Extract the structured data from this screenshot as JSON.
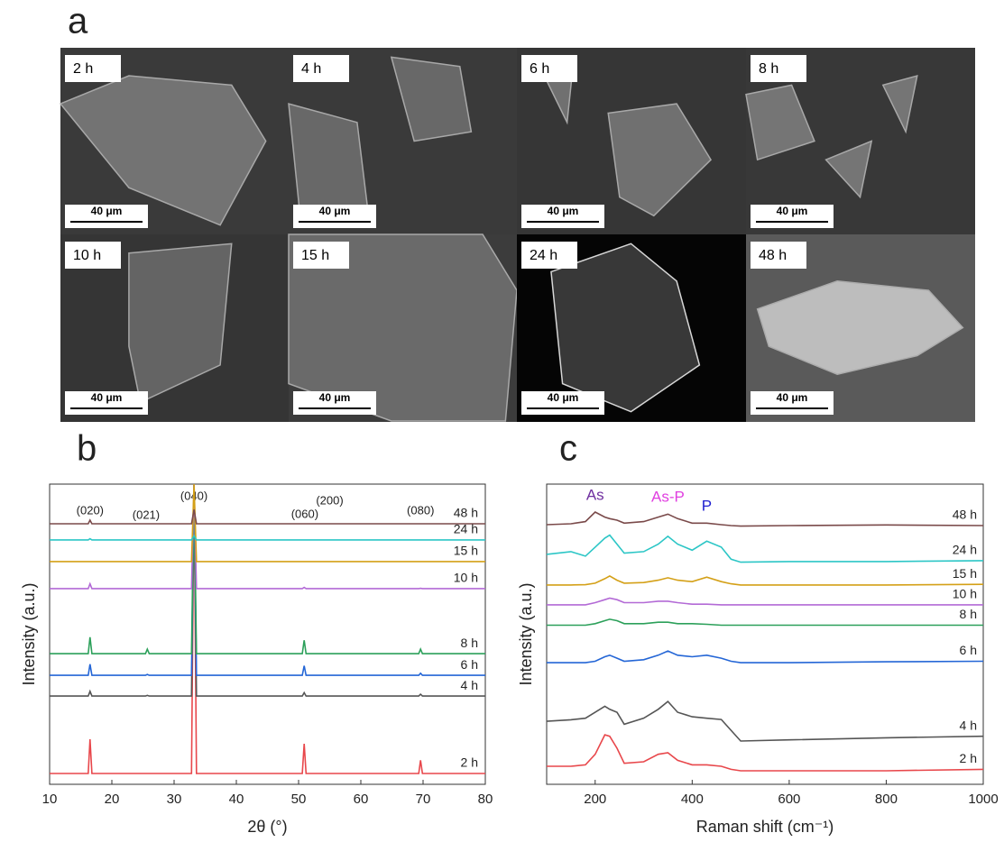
{
  "figure": {
    "panel_a": {
      "panel_label": "a",
      "images": [
        {
          "label": "2 h",
          "scale_bar": "40 μm"
        },
        {
          "label": "4 h",
          "scale_bar": "40 μm"
        },
        {
          "label": "6 h",
          "scale_bar": "40 μm"
        },
        {
          "label": "8 h",
          "scale_bar": "40 μm"
        },
        {
          "label": "10 h",
          "scale_bar": "40 μm"
        },
        {
          "label": "15 h",
          "scale_bar": "40 μm"
        },
        {
          "label": "24 h",
          "scale_bar": "40 μm"
        },
        {
          "label": "48 h",
          "scale_bar": "40 μm"
        }
      ]
    }
  },
  "chart_data": [
    {
      "type": "line",
      "panel_label": "b",
      "x_label": "2θ (°)",
      "y_label": "Intensity (a.u.)",
      "annotations": [
        "(020)",
        "(021)",
        "(040)",
        "(060)",
        "(200)",
        "(080)"
      ],
      "x": [
        10,
        16.2,
        16.5,
        16.8,
        25.4,
        25.7,
        26,
        32.8,
        33.2,
        33.6,
        50.6,
        50.9,
        51.2,
        69.3,
        69.6,
        69.9,
        80
      ],
      "xlim": [
        10,
        80
      ],
      "xticks": [
        10,
        20,
        30,
        40,
        50,
        60,
        70,
        80
      ],
      "ylim": [
        0,
        100
      ],
      "series": [
        {
          "name": "2 h",
          "color": "#e8474b",
          "values": [
            3.6,
            3.6,
            15,
            3.6,
            3.6,
            3.6,
            3.6,
            3.6,
            100,
            3.6,
            3.6,
            13.5,
            3.6,
            3.6,
            8,
            3.6,
            3.6
          ]
        },
        {
          "name": "4 h",
          "color": "#555555",
          "values": [
            29.4,
            29.4,
            31,
            29.4,
            29.4,
            29.6,
            29.4,
            29.4,
            100,
            29.4,
            29.4,
            30.5,
            29.4,
            29.4,
            30,
            29.4,
            29.4
          ]
        },
        {
          "name": "6 h",
          "color": "#2466d6",
          "values": [
            36.3,
            36.3,
            40,
            36.3,
            36.3,
            36.6,
            36.3,
            36.3,
            100,
            36.3,
            36.3,
            39.5,
            36.3,
            36.3,
            37,
            36.3,
            36.3
          ]
        },
        {
          "name": "8 h",
          "color": "#2ca05a",
          "values": [
            43.5,
            43.5,
            49,
            43.5,
            43.5,
            45,
            43.5,
            43.5,
            100,
            43.5,
            43.5,
            48,
            43.5,
            43.5,
            45,
            43.5,
            43.5
          ]
        },
        {
          "name": "10 h",
          "color": "#b36ad6",
          "values": [
            65.2,
            65.2,
            66.8,
            65.2,
            65.2,
            65.2,
            65.2,
            65.2,
            100,
            65.2,
            65.2,
            65.6,
            65.2,
            65.2,
            65.3,
            65.2,
            65.2
          ]
        },
        {
          "name": "15 h",
          "color": "#d4a017",
          "values": [
            74.2,
            74.2,
            74.2,
            74.2,
            74.2,
            74.2,
            74.2,
            74.2,
            100,
            74.2,
            74.2,
            74.2,
            74.2,
            74.2,
            74.2,
            74.2,
            74.2
          ]
        },
        {
          "name": "24 h",
          "color": "#2cc6c6",
          "values": [
            81.4,
            81.4,
            81.8,
            81.4,
            81.4,
            81.4,
            81.4,
            81.4,
            82.8,
            81.4,
            81.4,
            81.4,
            81.4,
            81.4,
            81.4,
            81.4,
            81.4
          ]
        },
        {
          "name": "48 h",
          "color": "#7a4a4a",
          "values": [
            86.8,
            86.8,
            88,
            86.8,
            86.8,
            86.8,
            86.8,
            86.8,
            91.5,
            86.8,
            86.8,
            86.8,
            86.8,
            86.8,
            86.8,
            86.8,
            86.8
          ]
        }
      ]
    },
    {
      "type": "line",
      "panel_label": "c",
      "x_label": "Raman shift (cm⁻¹)",
      "y_label": "Intensity (a.u.)",
      "annotations": [
        {
          "text": "As",
          "color": "#7030a0"
        },
        {
          "text": "As-P",
          "color": "#e040e0"
        },
        {
          "text": "P",
          "color": "#2020d0"
        }
      ],
      "x": [
        100,
        150,
        180,
        200,
        220,
        230,
        245,
        260,
        300,
        330,
        350,
        370,
        400,
        430,
        460,
        480,
        500,
        600,
        800,
        1000
      ],
      "xlim": [
        100,
        1000
      ],
      "xticks": [
        200,
        400,
        600,
        800,
        1000
      ],
      "ylim": [
        0,
        100
      ],
      "series": [
        {
          "name": "2 h",
          "color": "#e8474b",
          "values": [
            6,
            6,
            6.5,
            10,
            16.5,
            16,
            12,
            7,
            7.5,
            10,
            10.5,
            8,
            6.5,
            6.5,
            6,
            5,
            4.5,
            4.5,
            4.5,
            5
          ]
        },
        {
          "name": "4 h",
          "color": "#555555",
          "values": [
            21,
            21.5,
            22,
            24,
            26,
            25,
            24,
            20,
            22,
            25,
            27.6,
            24,
            22.5,
            22,
            21.6,
            18,
            14.4,
            14.8,
            15.5,
            16
          ]
        },
        {
          "name": "6 h",
          "color": "#2466d6",
          "values": [
            40.5,
            40.5,
            40.5,
            41,
            42.5,
            43,
            42,
            41,
            41.5,
            43,
            44.4,
            43,
            42.5,
            43,
            42,
            41,
            40.5,
            40.5,
            40.8,
            41
          ]
        },
        {
          "name": "8 h",
          "color": "#2ca05a",
          "values": [
            53,
            53,
            53,
            53.5,
            54.5,
            55,
            54.5,
            53.5,
            53.5,
            54,
            54,
            53.5,
            53.5,
            53.3,
            53,
            53,
            53,
            53,
            53,
            53
          ]
        },
        {
          "name": "10 h",
          "color": "#b36ad6",
          "values": [
            59.8,
            59.8,
            59.8,
            60.5,
            61.5,
            62,
            61.5,
            60.5,
            60.5,
            61,
            61,
            60.5,
            60,
            60,
            59.8,
            59.8,
            59.8,
            59.8,
            59.8,
            59.8
          ]
        },
        {
          "name": "15 h",
          "color": "#d4a017",
          "values": [
            66.4,
            66.4,
            66.5,
            67,
            68.5,
            69.4,
            68,
            67,
            67.2,
            68,
            68.8,
            68,
            67.5,
            69,
            67.5,
            66.8,
            66.4,
            66.4,
            66.4,
            66.6
          ]
        },
        {
          "name": "24 h",
          "color": "#2cc6c6",
          "values": [
            76.6,
            77.5,
            76,
            79,
            82,
            83,
            80,
            77,
            77.5,
            80,
            82.6,
            80,
            78,
            81,
            79,
            75,
            74,
            74.2,
            74.2,
            74.5
          ]
        },
        {
          "name": "48 h",
          "color": "#7a4a4a",
          "values": [
            86.5,
            86.8,
            87.5,
            90.7,
            89,
            88.5,
            88,
            87,
            87.5,
            89,
            90,
            88.5,
            87,
            87,
            86.5,
            86.2,
            86,
            86.2,
            86.4,
            86.2
          ]
        }
      ]
    }
  ]
}
